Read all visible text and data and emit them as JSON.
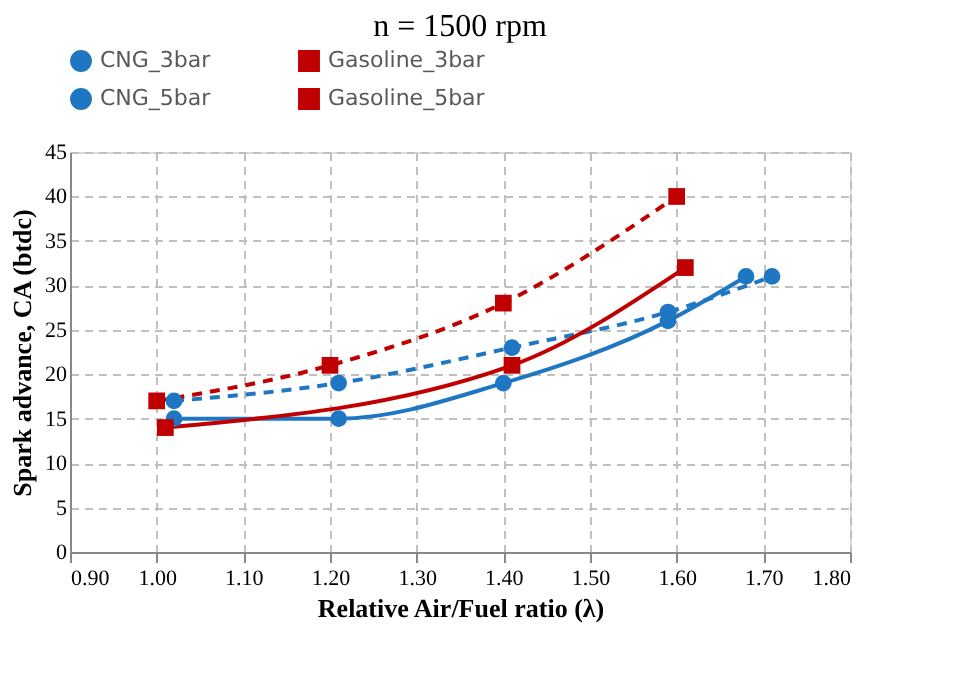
{
  "chart_data": {
    "type": "line",
    "title": "n = 1500 rpm",
    "xlabel": "Relative Air/Fuel ratio (λ)",
    "ylabel": "Spark advance, CA (btdc)",
    "series": [
      {
        "name": "CNG_3bar",
        "color": "#1f77c4",
        "marker": "circle",
        "line_style": "dashed",
        "x": [
          1.02,
          1.21,
          1.41,
          1.59,
          1.71
        ],
        "values": [
          17,
          19,
          23,
          27,
          31
        ]
      },
      {
        "name": "Gasoline_3bar",
        "color": "#c00000",
        "marker": "square",
        "line_style": "dashed",
        "x": [
          1.0,
          1.2,
          1.4,
          1.6
        ],
        "values": [
          17,
          21,
          28,
          40
        ]
      },
      {
        "name": "CNG_5bar",
        "color": "#1f77c4",
        "marker": "circle",
        "line_style": "solid",
        "x": [
          1.02,
          1.21,
          1.4,
          1.59,
          1.68
        ],
        "values": [
          15,
          15,
          19,
          26,
          31
        ]
      },
      {
        "name": "Gasoline_5bar",
        "color": "#c00000",
        "marker": "square",
        "line_style": "solid",
        "x": [
          1.01,
          1.41,
          1.61
        ],
        "values": [
          14,
          21,
          32
        ]
      }
    ],
    "xlim": [
      0.9,
      1.8
    ],
    "xticks": [
      {
        "value": 0.9,
        "label": "0.90"
      },
      {
        "value": 1.0,
        "label": "1.00"
      },
      {
        "value": 1.1,
        "label": "1.10"
      },
      {
        "value": 1.2,
        "label": "1.20"
      },
      {
        "value": 1.3,
        "label": "1.30"
      },
      {
        "value": 1.4,
        "label": "1.40"
      },
      {
        "value": 1.5,
        "label": "1.50"
      },
      {
        "value": 1.6,
        "label": "1.60"
      },
      {
        "value": 1.7,
        "label": "1.70"
      },
      {
        "value": 1.8,
        "label": "1.80"
      }
    ],
    "ylim": [
      0,
      45
    ],
    "yticks": [
      0,
      5,
      10,
      15,
      20,
      25,
      30,
      35,
      40,
      45
    ],
    "grid": true,
    "legend": "top"
  }
}
